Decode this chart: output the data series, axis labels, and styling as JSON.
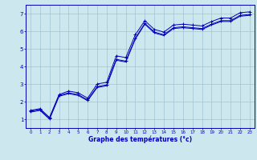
{
  "title": "",
  "xlabel": "Graphe des températures (°c)",
  "ylabel": "",
  "bg_color": "#cce8ee",
  "line_color": "#0000bb",
  "grid_color": "#99bbcc",
  "xlim": [
    -0.5,
    23.5
  ],
  "ylim": [
    0.5,
    7.5
  ],
  "xticks": [
    0,
    1,
    2,
    3,
    4,
    5,
    6,
    7,
    8,
    9,
    10,
    11,
    12,
    13,
    14,
    15,
    16,
    17,
    18,
    19,
    20,
    21,
    22,
    23
  ],
  "yticks": [
    1,
    2,
    3,
    4,
    5,
    6,
    7
  ],
  "line1_x": [
    0,
    1,
    2,
    3,
    4,
    5,
    6,
    7,
    8,
    9,
    10,
    11,
    12,
    13,
    14,
    15,
    16,
    17,
    18,
    19,
    20,
    21,
    22,
    23
  ],
  "line1_y": [
    1.5,
    1.6,
    1.1,
    2.4,
    2.6,
    2.5,
    2.2,
    3.0,
    3.1,
    4.6,
    4.5,
    5.8,
    6.6,
    6.1,
    5.95,
    6.35,
    6.4,
    6.35,
    6.3,
    6.55,
    6.75,
    6.75,
    7.05,
    7.1
  ],
  "line2_x": [
    0,
    1,
    2,
    3,
    4,
    5,
    6,
    7,
    8,
    9,
    10,
    11,
    12,
    13,
    14,
    15,
    16,
    17,
    18,
    19,
    20,
    21,
    22,
    23
  ],
  "line2_y": [
    1.45,
    1.55,
    1.05,
    2.35,
    2.5,
    2.4,
    2.1,
    2.85,
    2.95,
    4.4,
    4.3,
    5.6,
    6.45,
    5.95,
    5.8,
    6.2,
    6.25,
    6.2,
    6.15,
    6.4,
    6.6,
    6.6,
    6.9,
    6.95
  ],
  "line3_x": [
    0,
    1,
    2,
    3,
    4,
    5,
    6,
    7,
    8,
    9,
    10,
    11,
    12,
    13,
    14,
    15,
    16,
    17,
    18,
    19,
    20,
    21,
    22,
    23
  ],
  "line3_y": [
    1.4,
    1.5,
    1.0,
    2.3,
    2.45,
    2.35,
    2.05,
    2.8,
    2.9,
    4.35,
    4.25,
    5.55,
    6.4,
    5.9,
    5.75,
    6.15,
    6.2,
    6.15,
    6.1,
    6.35,
    6.55,
    6.55,
    6.85,
    6.9
  ]
}
